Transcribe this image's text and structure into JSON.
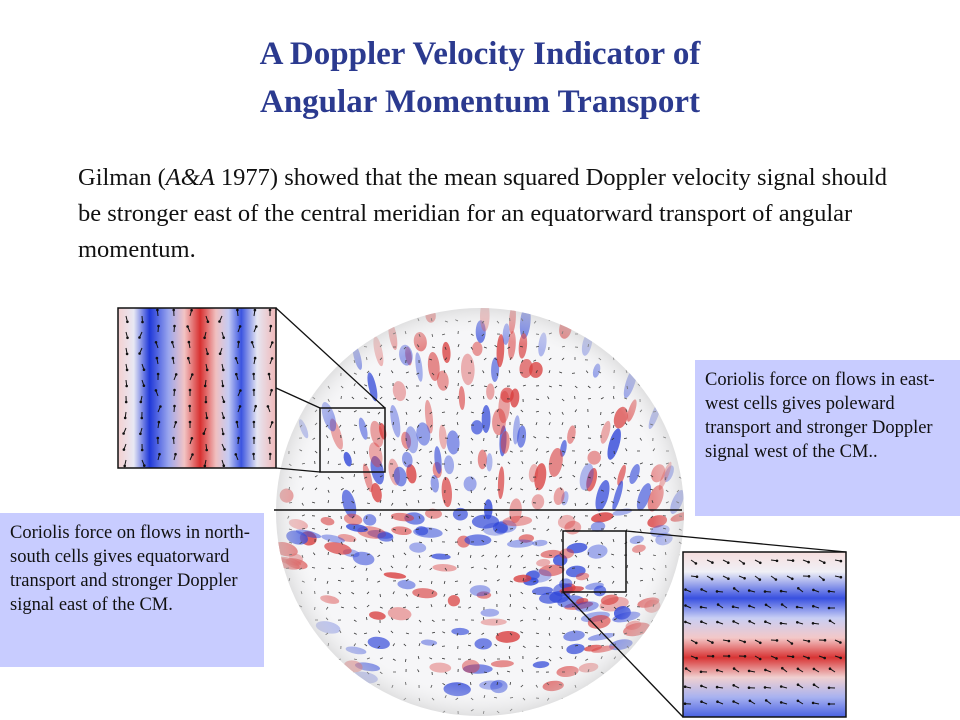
{
  "slide": {
    "title_line1": "A Doppler Velocity Indicator of",
    "title_line2": "Angular Momentum Transport",
    "intro": {
      "pre": "Gilman (",
      "citation": "A&A",
      "post": " 1977) showed that the mean squared Doppler velocity signal should be stronger east of the central meridian for an equatorward transport of angular momentum."
    },
    "callout_right": "Coriolis force on flows in east-west cells gives poleward transport and stronger Doppler signal west of the CM..",
    "callout_left": "Coriolis force on flows in north-south cells gives equatorward transport and stronger Doppler signal east of the CM."
  },
  "colors": {
    "title": "#2b3a8f",
    "positive_doppler": "#d83a3a",
    "negative_doppler": "#2e45d8",
    "callout_fill": "#c8ccff"
  }
}
